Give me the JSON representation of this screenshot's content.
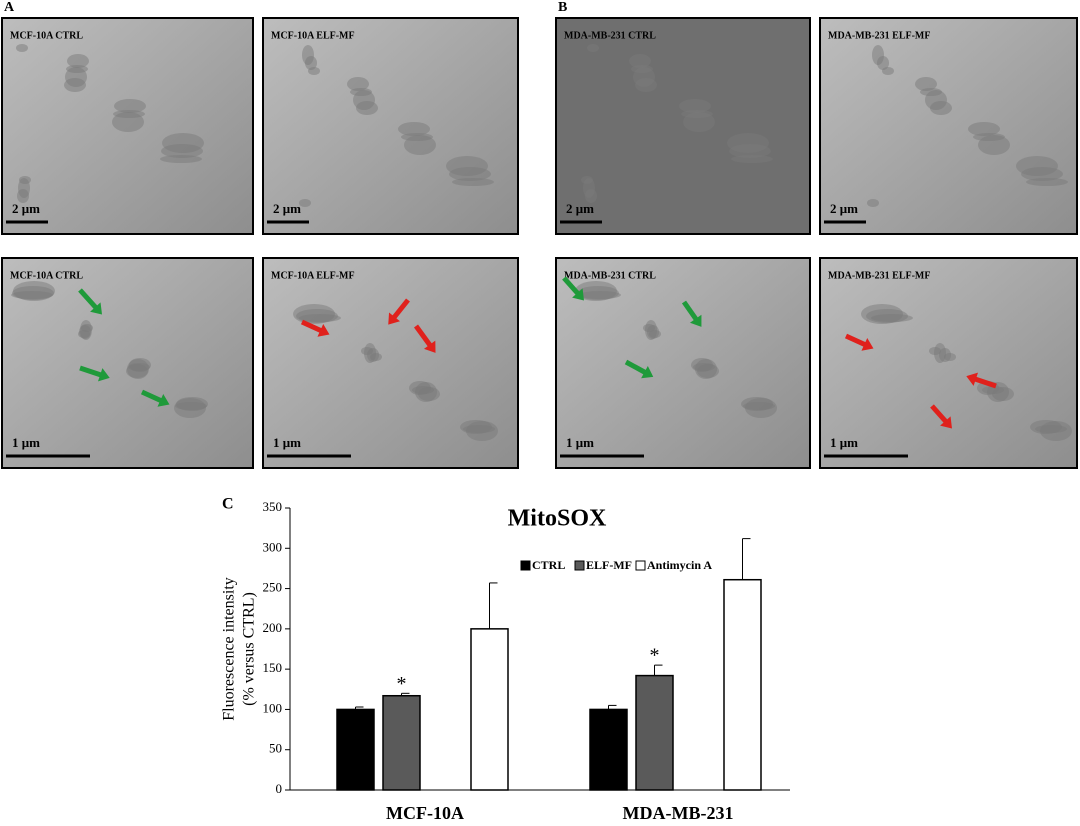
{
  "figure": {
    "panels": [
      {
        "label": "A",
        "images": [
          {
            "label": "MCF-10A CTRL",
            "scale": "2 μm"
          },
          {
            "label": "MCF-10A ELF-MF",
            "scale": "2 μm"
          },
          {
            "label": "MCF-10A CTRL",
            "scale": "1 μm"
          },
          {
            "label": "MCF-10A ELF-MF",
            "scale": "1 μm"
          }
        ]
      },
      {
        "label": "B",
        "images": [
          {
            "label": "MDA-MB-231 CTRL",
            "scale": "2 μm"
          },
          {
            "label": "MDA-MB-231 ELF-MF",
            "scale": "2 μm"
          },
          {
            "label": "MDA-MB-231 CTRL",
            "scale": "1 μm"
          },
          {
            "label": "MDA-MB-231 ELF-MF",
            "scale": "1 μm"
          }
        ]
      }
    ]
  },
  "chart_data": {
    "type": "bar",
    "panel_label": "C",
    "title": "MitoSOX",
    "ylabel": [
      "Fluorescence intensity",
      "(% versus CTRL)"
    ],
    "categories": [
      "MCF-10A",
      "MDA-MB-231"
    ],
    "series": [
      {
        "name": "CTRL",
        "color": "#000000",
        "values": [
          100,
          100
        ],
        "errors": [
          3,
          5
        ]
      },
      {
        "name": "ELF-MF",
        "color": "#5a5a5a",
        "values": [
          117,
          142
        ],
        "errors": [
          3,
          13
        ],
        "annotations": [
          "*",
          "*"
        ]
      },
      {
        "name": "Antimycin A",
        "color": "#ffffff",
        "values": [
          200,
          261
        ],
        "errors": [
          57,
          51
        ]
      }
    ],
    "ylim": [
      0,
      350
    ],
    "yticks": [
      0,
      50,
      100,
      150,
      200,
      250,
      300,
      350
    ]
  }
}
